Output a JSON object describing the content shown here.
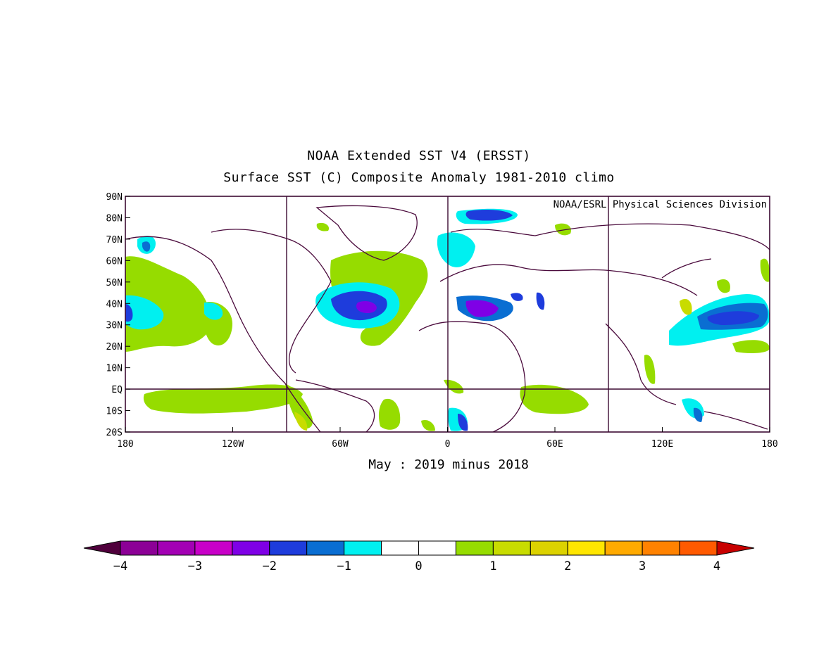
{
  "title": {
    "line1": "NOAA Extended SST V4 (ERSST)",
    "line2": "Surface SST (C) Composite Anomaly 1981-2010 climo"
  },
  "subtitle": "May : 2019 minus 2018",
  "credit": "NOAA/ESRL Physical Sciences Division",
  "map": {
    "lat_ticks": [
      "90N",
      "80N",
      "70N",
      "60N",
      "50N",
      "40N",
      "30N",
      "20N",
      "10N",
      "EQ",
      "10S",
      "20S"
    ],
    "lon_ticks": [
      "180",
      "120W",
      "60W",
      "0",
      "60E",
      "120E",
      "180"
    ],
    "lon_range": [
      -180,
      180
    ],
    "lat_range": [
      -20,
      90
    ]
  },
  "colorbar": {
    "ticks": [
      "-4",
      "-3",
      "-2",
      "-1",
      "0",
      "1",
      "2",
      "3",
      "4"
    ],
    "colors": [
      "#8c0096",
      "#a300b4",
      "#c800c8",
      "#7f00e6",
      "#1e3cdc",
      "#0a6ed2",
      "#00f0f0",
      "#ffffff",
      "#ffffff",
      "#96dc00",
      "#c8dc00",
      "#dcd200",
      "#ffe600",
      "#ffaa00",
      "#ff8200",
      "#ff5a00"
    ],
    "under_color": "#50003c",
    "over_color": "#c80000"
  },
  "regions": [
    {
      "name": "north-pacific-positive",
      "value": 1
    },
    {
      "name": "north-atlantic-negative",
      "value": -1.8
    },
    {
      "name": "mediterranean-negative",
      "value": -2.5
    },
    {
      "name": "west-pacific-negative",
      "value": -1.6
    }
  ]
}
